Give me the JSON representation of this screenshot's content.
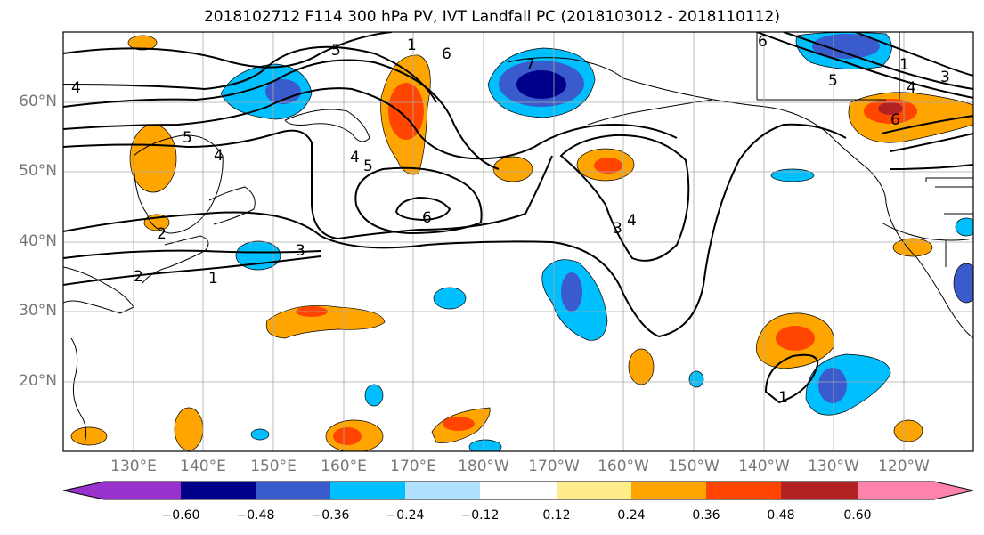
{
  "title": "2018102712 F114 300 hPa PV, IVT Landfall PC (2018103012 - 2018110112)",
  "map": {
    "lat_labels": [
      "60°N",
      "50°N",
      "40°N",
      "30°N",
      "20°N"
    ],
    "lon_labels": [
      "130°E",
      "140°E",
      "150°E",
      "160°E",
      "170°E",
      "180°W",
      "170°W",
      "160°W",
      "150°W",
      "140°W",
      "130°W",
      "120°W"
    ],
    "contour_labels": [
      "4",
      "5",
      "6",
      "1",
      "7",
      "5",
      "6",
      "4",
      "5",
      "4",
      "1",
      "6",
      "2",
      "3",
      "2",
      "1",
      "3",
      "4",
      "3",
      "4",
      "5",
      "6",
      "1"
    ]
  },
  "colorbar": {
    "tick_labels": [
      "−0.60",
      "−0.48",
      "−0.36",
      "−0.24",
      "−0.12",
      "0.12",
      "0.24",
      "0.36",
      "0.48",
      "0.60"
    ],
    "colors": [
      "#9932cc",
      "#00008b",
      "#3a5bcc",
      "#00bfff",
      "#b0e2ff",
      "#ffffff",
      "#ffec8b",
      "#ffa500",
      "#ff4500",
      "#b22222",
      "#ff82ab"
    ]
  }
}
